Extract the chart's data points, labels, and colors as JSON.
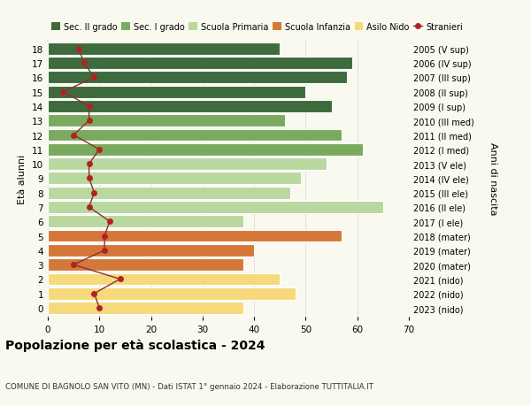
{
  "ages": [
    18,
    17,
    16,
    15,
    14,
    13,
    12,
    11,
    10,
    9,
    8,
    7,
    6,
    5,
    4,
    3,
    2,
    1,
    0
  ],
  "bar_values": [
    45,
    59,
    58,
    50,
    55,
    46,
    57,
    61,
    54,
    49,
    47,
    65,
    38,
    57,
    40,
    38,
    45,
    48,
    38
  ],
  "stranieri": [
    6,
    7,
    9,
    3,
    8,
    8,
    5,
    10,
    8,
    8,
    9,
    8,
    12,
    11,
    11,
    5,
    14,
    9,
    10
  ],
  "right_labels": [
    "2005 (V sup)",
    "2006 (IV sup)",
    "2007 (III sup)",
    "2008 (II sup)",
    "2009 (I sup)",
    "2010 (III med)",
    "2011 (II med)",
    "2012 (I med)",
    "2013 (V ele)",
    "2014 (IV ele)",
    "2015 (III ele)",
    "2016 (II ele)",
    "2017 (I ele)",
    "2018 (mater)",
    "2019 (mater)",
    "2020 (mater)",
    "2021 (nido)",
    "2022 (nido)",
    "2023 (nido)"
  ],
  "bar_colors": [
    "#3d6b3d",
    "#3d6b3d",
    "#3d6b3d",
    "#3d6b3d",
    "#3d6b3d",
    "#7aaa5e",
    "#7aaa5e",
    "#7aaa5e",
    "#b8d8a0",
    "#b8d8a0",
    "#b8d8a0",
    "#b8d8a0",
    "#b8d8a0",
    "#d4783a",
    "#d4783a",
    "#d4783a",
    "#f5d97a",
    "#f5d97a",
    "#f5d97a"
  ],
  "legend_labels": [
    "Sec. II grado",
    "Sec. I grado",
    "Scuola Primaria",
    "Scuola Infanzia",
    "Asilo Nido",
    "Stranieri"
  ],
  "legend_colors": [
    "#3d6b3d",
    "#7aaa5e",
    "#b8d8a0",
    "#d4783a",
    "#f5d97a",
    "#b22222"
  ],
  "stranieri_color": "#b22222",
  "stranieri_line_color": "#8b3030",
  "ylabel": "Età alunni",
  "right_ylabel": "Anni di nascita",
  "title": "Popolazione per età scolastica - 2024",
  "subtitle": "COMUNE DI BAGNOLO SAN VITO (MN) - Dati ISTAT 1° gennaio 2024 - Elaborazione TUTTITALIA.IT",
  "xlim": [
    0,
    70
  ],
  "background_color": "#f9f9f0",
  "grid_color": "#cccccc"
}
